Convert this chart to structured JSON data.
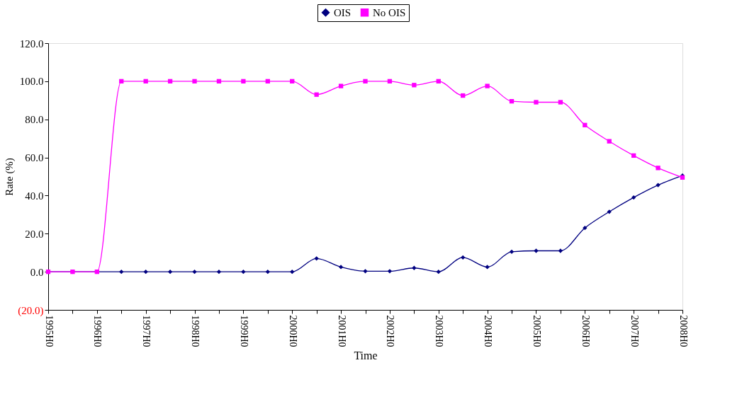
{
  "chart_data": {
    "type": "line",
    "xlabel": "Time",
    "ylabel": "Rate (%)",
    "categories": [
      "1995H0",
      null,
      "1996H0",
      null,
      "1997H0",
      null,
      "1998H0",
      null,
      "1999H0",
      null,
      "2000H0",
      null,
      "2001H0",
      null,
      "2002H0",
      null,
      "2003H0",
      null,
      "2004H0",
      null,
      "2005H0",
      null,
      "2006H0",
      null,
      "2007H0",
      null,
      "2008H0"
    ],
    "series": [
      {
        "name": "OIS",
        "color": "#000080",
        "marker": "diamond",
        "values": [
          0,
          0,
          0,
          0,
          0,
          0,
          0,
          0,
          0,
          0,
          0,
          7,
          2.5,
          0.3,
          0.3,
          2,
          0,
          7.5,
          2.5,
          10.5,
          11,
          11,
          23,
          31.5,
          39,
          45.5,
          50.5
        ]
      },
      {
        "name": "No OIS",
        "color": "#ff00ff",
        "marker": "square",
        "values": [
          0,
          0,
          0,
          100,
          100,
          100,
          100,
          100,
          100,
          100,
          100,
          93,
          97.5,
          100,
          100,
          98,
          100,
          92.5,
          97.5,
          89.5,
          89,
          89,
          77,
          68.5,
          61,
          54.5,
          49.5
        ]
      }
    ],
    "ylim": [
      -20,
      120
    ],
    "yticks": [
      {
        "value": -20,
        "label": "(20.0)"
      },
      {
        "value": 0,
        "label": "0.0"
      },
      {
        "value": 20,
        "label": "20.0"
      },
      {
        "value": 40,
        "label": "40.0"
      },
      {
        "value": 60,
        "label": "60.0"
      },
      {
        "value": 80,
        "label": "80.0"
      },
      {
        "value": 100,
        "label": "100.0"
      },
      {
        "value": 120,
        "label": "120.0"
      }
    ],
    "legend": "top",
    "grid": false,
    "line_style": "solid"
  }
}
